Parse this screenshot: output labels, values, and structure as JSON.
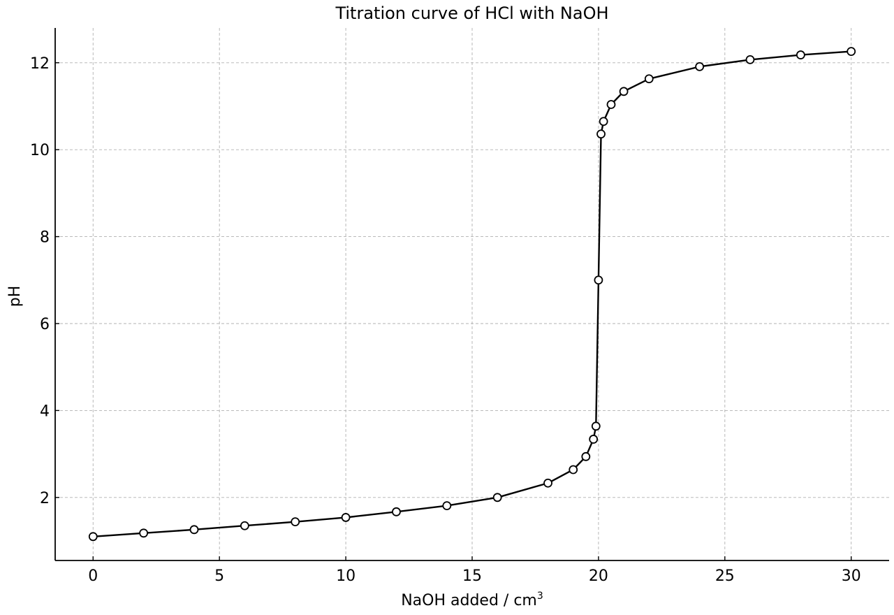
{
  "chart_data": {
    "type": "line",
    "title": "Titration curve of HCl with NaOH",
    "xlabel": "NaOH added / cm",
    "xlabel_superscript": "3",
    "ylabel": "pH",
    "xlim": [
      -1.5,
      31.5
    ],
    "ylim": [
      0.55,
      12.8
    ],
    "xticks": [
      0,
      5,
      10,
      15,
      20,
      25,
      30
    ],
    "yticks": [
      2,
      4,
      6,
      8,
      10,
      12
    ],
    "grid": true,
    "legend": "none",
    "colors": {
      "line": "#000000",
      "marker_fill": "#ffffff",
      "grid": "#b0b0b0",
      "axis": "#000000"
    },
    "series": [
      {
        "x": [
          0,
          2,
          4,
          6,
          8,
          10,
          12,
          14,
          16,
          18,
          19,
          19.5,
          19.8,
          19.9,
          20,
          20.1,
          20.2,
          20.5,
          21,
          22,
          24,
          26,
          28,
          30
        ],
        "y": [
          1.1,
          1.18,
          1.26,
          1.35,
          1.44,
          1.54,
          1.67,
          1.81,
          2.0,
          2.33,
          2.64,
          2.94,
          3.34,
          3.64,
          7.0,
          10.36,
          10.65,
          11.04,
          11.34,
          11.63,
          11.91,
          12.07,
          12.18,
          12.26
        ]
      }
    ]
  }
}
